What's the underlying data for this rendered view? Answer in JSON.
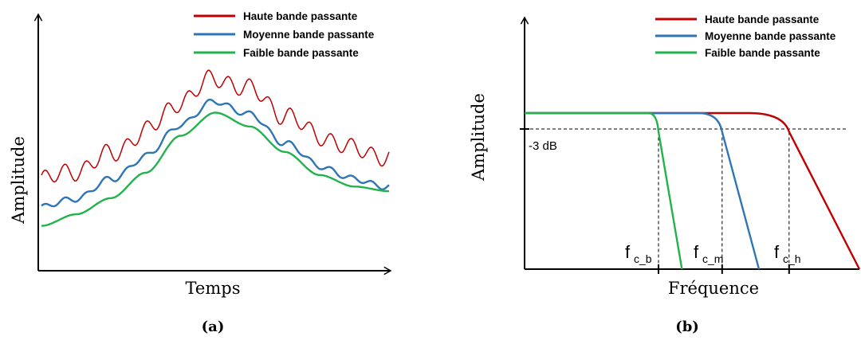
{
  "colors": {
    "high": "#c00000",
    "medium": "#2e75b6",
    "low": "#22b24c",
    "axis": "#000000"
  },
  "legend": {
    "high": "Haute bande passante",
    "medium": "Moyenne bande passante",
    "low": "Faible bande passante"
  },
  "chart_data": [
    {
      "type": "line",
      "panel_label": "(a)",
      "xlabel": "Temps",
      "ylabel": "Amplitude",
      "x_ticks": false,
      "y_ticks": false,
      "grid": false,
      "legend_position": "top-right",
      "x": [
        0,
        0.1,
        0.2,
        0.3,
        0.4,
        0.5,
        0.6,
        0.7,
        0.8,
        0.9,
        1.0
      ],
      "series": [
        {
          "key": "high",
          "name": "Haute bande passante",
          "values": [
            0.36,
            0.4,
            0.47,
            0.57,
            0.7,
            0.8,
            0.75,
            0.64,
            0.55,
            0.49,
            0.46
          ],
          "ripple": 0.035
        },
        {
          "key": "medium",
          "name": "Moyenne bande passante",
          "values": [
            0.24,
            0.28,
            0.36,
            0.46,
            0.6,
            0.7,
            0.64,
            0.52,
            0.42,
            0.36,
            0.33
          ],
          "ripple": 0.012
        },
        {
          "key": "low",
          "name": "Faible bande passante",
          "values": [
            0.16,
            0.21,
            0.28,
            0.39,
            0.55,
            0.65,
            0.59,
            0.48,
            0.38,
            0.33,
            0.31
          ],
          "ripple": 0
        }
      ]
    },
    {
      "type": "line",
      "panel_label": "(b)",
      "xlabel": "Fréquence",
      "ylabel": "Amplitude",
      "grid": false,
      "legend_position": "top-right",
      "reference_line": {
        "label": "-3 dB",
        "value": 0.88
      },
      "cutoff_labels": [
        {
          "key": "low",
          "main": "f",
          "sub": "c_b"
        },
        {
          "key": "medium",
          "main": "f",
          "sub": "c_m"
        },
        {
          "key": "high",
          "main": "f",
          "sub": "c_h"
        }
      ],
      "series": [
        {
          "key": "high",
          "name": "Haute bande passante",
          "passband": 1.0,
          "knee": 0.67,
          "cutoff": 0.79,
          "zero": 1.0
        },
        {
          "key": "medium",
          "name": "Moyenne bande passante",
          "passband": 1.0,
          "knee": 0.52,
          "cutoff": 0.59,
          "zero": 0.7
        },
        {
          "key": "low",
          "name": "Faible bande passante",
          "passband": 1.0,
          "knee": 0.37,
          "cutoff": 0.4,
          "zero": 0.47
        }
      ]
    }
  ]
}
